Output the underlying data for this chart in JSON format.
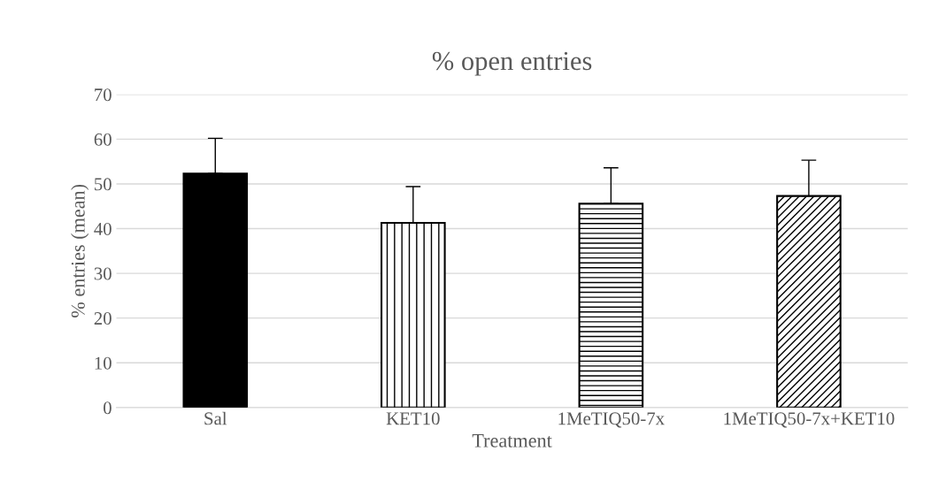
{
  "chart_data": {
    "type": "bar",
    "title": "% open entries",
    "xlabel": "Treatment",
    "ylabel": "% entries (mean)",
    "categories": [
      "Sal",
      "KET10",
      "1MeTIQ50-7x",
      "1MeTIQ50-7x+KET10"
    ],
    "values": [
      52.3,
      41.3,
      45.6,
      47.3
    ],
    "errors": [
      [
        52.3,
        60.2
      ],
      [
        41.3,
        49.4
      ],
      [
        45.6,
        53.6
      ],
      [
        47.3,
        55.3
      ]
    ],
    "colors": [
      "#000000",
      "#000000",
      "#000000",
      "#000000"
    ],
    "ylim": [
      0,
      70
    ],
    "yticks": [
      0,
      10,
      20,
      30,
      40,
      50,
      60,
      70
    ],
    "grid": "y",
    "legend": false
  }
}
